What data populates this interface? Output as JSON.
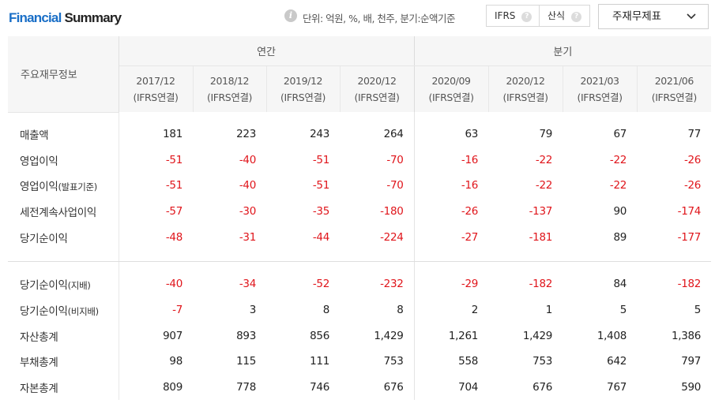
{
  "header": {
    "title_part1": "Financial",
    "title_part2": "Summary",
    "unit_text": "단위: 억원, %, 배, 천주, 분기:순액기준",
    "ifrs_label": "IFRS",
    "calc_label": "산식",
    "statement_select": "주재무제표"
  },
  "table": {
    "label_header": "주요재무정보",
    "annual_header": "연간",
    "quarter_header": "분기",
    "annual_periods": [
      {
        "date": "2017/12",
        "basis": "(IFRS연결)"
      },
      {
        "date": "2018/12",
        "basis": "(IFRS연결)"
      },
      {
        "date": "2019/12",
        "basis": "(IFRS연결)"
      },
      {
        "date": "2020/12",
        "basis": "(IFRS연결)"
      }
    ],
    "quarter_periods": [
      {
        "date": "2020/09",
        "basis": "(IFRS연결)"
      },
      {
        "date": "2020/12",
        "basis": "(IFRS연결)"
      },
      {
        "date": "2021/03",
        "basis": "(IFRS연결)"
      },
      {
        "date": "2021/06",
        "basis": "(IFRS연결)"
      }
    ],
    "rows": [
      {
        "label": "매출액",
        "label_suffix": "",
        "values": [
          "181",
          "223",
          "243",
          "264",
          "63",
          "79",
          "67",
          "77"
        ]
      },
      {
        "label": "영업이익",
        "label_suffix": "",
        "values": [
          "-51",
          "-40",
          "-51",
          "-70",
          "-16",
          "-22",
          "-22",
          "-26"
        ]
      },
      {
        "label": "영업이익",
        "label_suffix": "(발표기준)",
        "values": [
          "-51",
          "-40",
          "-51",
          "-70",
          "-16",
          "-22",
          "-22",
          "-26"
        ]
      },
      {
        "label": "세전계속사업이익",
        "label_suffix": "",
        "values": [
          "-57",
          "-30",
          "-35",
          "-180",
          "-26",
          "-137",
          "90",
          "-174"
        ]
      },
      {
        "label": "당기순이익",
        "label_suffix": "",
        "values": [
          "-48",
          "-31",
          "-44",
          "-224",
          "-27",
          "-181",
          "89",
          "-177"
        ]
      },
      {
        "label": "당기순이익",
        "label_suffix": "(지배)",
        "values": [
          "-40",
          "-34",
          "-52",
          "-232",
          "-29",
          "-182",
          "84",
          "-182"
        ]
      },
      {
        "label": "당기순이익",
        "label_suffix": "(비지배)",
        "values": [
          "-7",
          "3",
          "8",
          "8",
          "2",
          "1",
          "5",
          "5"
        ]
      },
      {
        "label": "자산총계",
        "label_suffix": "",
        "values": [
          "907",
          "893",
          "856",
          "1,429",
          "1,261",
          "1,429",
          "1,408",
          "1,386"
        ]
      },
      {
        "label": "부채총계",
        "label_suffix": "",
        "values": [
          "98",
          "115",
          "111",
          "753",
          "558",
          "753",
          "642",
          "797"
        ]
      },
      {
        "label": "자본총계",
        "label_suffix": "",
        "values": [
          "809",
          "778",
          "746",
          "676",
          "704",
          "676",
          "767",
          "590"
        ]
      }
    ]
  },
  "colors": {
    "accent": "#1a6fc7",
    "negative": "#e0151b",
    "header_bg": "#f6f6f6"
  }
}
